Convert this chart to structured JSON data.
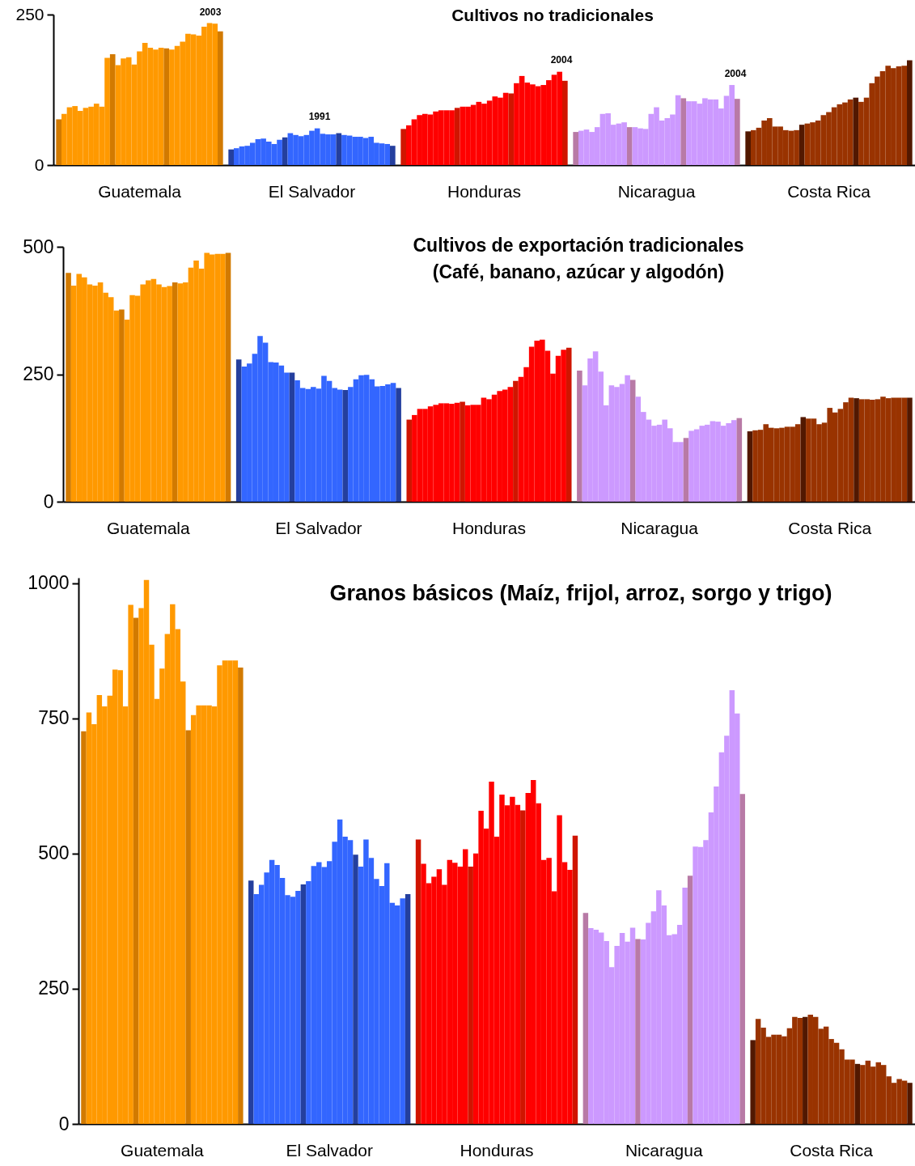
{
  "chart_data": [
    {
      "type": "bar",
      "title": "Cultivos no tradicionales",
      "categories": [
        null,
        null,
        null,
        null,
        null,
        null,
        null,
        null,
        null,
        null,
        null,
        null,
        null,
        null,
        null,
        "Guatemala",
        null,
        null,
        null,
        null,
        null,
        null,
        null,
        null,
        null,
        null,
        null,
        null,
        null,
        null,
        null,
        null,
        null,
        null,
        null,
        null,
        null,
        null,
        null,
        null,
        null,
        null,
        null,
        null,
        null,
        null,
        null,
        "El Salvador",
        null,
        null,
        null,
        null,
        null,
        null,
        null,
        null,
        null,
        null,
        null,
        null,
        null,
        null,
        null,
        null,
        null,
        null,
        null,
        null,
        null,
        null,
        null,
        null,
        null,
        null,
        null,
        null,
        null,
        null,
        null,
        "Honduras",
        null,
        null,
        null,
        null,
        null,
        null,
        null,
        null,
        null,
        null,
        null,
        null,
        null,
        null,
        null,
        null,
        null,
        null,
        null,
        null,
        null,
        null,
        null,
        null,
        null,
        null,
        null,
        null,
        null,
        null,
        null,
        "Nicaragua",
        null,
        null,
        null,
        null,
        null,
        null,
        null,
        null,
        null,
        null,
        null,
        null,
        null,
        null,
        null,
        null,
        null,
        null,
        null,
        null,
        null,
        null,
        null,
        null,
        null,
        null,
        null,
        null,
        null,
        null,
        null,
        "Costa Rica",
        null,
        null,
        null,
        null,
        null,
        null,
        null,
        null,
        null,
        null,
        null,
        null,
        null,
        null,
        null
      ],
      "values": [
        76,
        85,
        96,
        98,
        90,
        95,
        97,
        102,
        97,
        178,
        184,
        166,
        177,
        179,
        167,
        189,
        203,
        195,
        192,
        195,
        194,
        192,
        198,
        205,
        218,
        217,
        215,
        230,
        236,
        235,
        222,
        null,
        26,
        28,
        31,
        32,
        37,
        43,
        44,
        39,
        35,
        42,
        46,
        53,
        50,
        48,
        50,
        57,
        61,
        52,
        51,
        51,
        53,
        50,
        49,
        47,
        47,
        45,
        47,
        37,
        36,
        35,
        32,
        null,
        60,
        66,
        76,
        83,
        85,
        84,
        89,
        91,
        91,
        91,
        95,
        97,
        97,
        100,
        105,
        102,
        107,
        114,
        112,
        120,
        119,
        136,
        148,
        137,
        134,
        131,
        133,
        141,
        150,
        155,
        140,
        null,
        55,
        57,
        59,
        55,
        63,
        85,
        86,
        67,
        69,
        71,
        63,
        63,
        61,
        60,
        85,
        96,
        74,
        78,
        84,
        116,
        111,
        106,
        106,
        102,
        111,
        109,
        109,
        94,
        115,
        133,
        110,
        null,
        56,
        58,
        62,
        74,
        78,
        64,
        64,
        58,
        57,
        58,
        67,
        69,
        71,
        74,
        83,
        88,
        96,
        101,
        104,
        109,
        112,
        105,
        112,
        136,
        147,
        156,
        165,
        161,
        164,
        165,
        174
      ],
      "colors": [
        "#d27a00",
        "#ff9900",
        "#ff9900",
        "#ff9900",
        "#ff9900",
        "#ff9900",
        "#ff9900",
        "#ff9900",
        "#ff9900",
        "#ff9900",
        "#d27a00",
        "#ff9900",
        "#ff9900",
        "#ff9900",
        "#ff9900",
        "#ff9900",
        "#ff9900",
        "#ff9900",
        "#ff9900",
        "#ff9900",
        "#d27a00",
        "#ff9900",
        "#ff9900",
        "#ff9900",
        "#ff9900",
        "#ff9900",
        "#ff9900",
        "#ff9900",
        "#ff9900",
        "#ff9900",
        "#d27a00",
        null,
        "#243f9e",
        "#3366ff",
        "#3366ff",
        "#3366ff",
        "#3366ff",
        "#3366ff",
        "#3366ff",
        "#3366ff",
        "#3366ff",
        "#3366ff",
        "#243f9e",
        "#3366ff",
        "#3366ff",
        "#3366ff",
        "#3366ff",
        "#3366ff",
        "#3366ff",
        "#3366ff",
        "#3366ff",
        "#3366ff",
        "#243f9e",
        "#3366ff",
        "#3366ff",
        "#3366ff",
        "#3366ff",
        "#3366ff",
        "#3366ff",
        "#3366ff",
        "#3366ff",
        "#3366ff",
        "#243f9e",
        null,
        "#d01500",
        "#ff0000",
        "#ff0000",
        "#ff0000",
        "#ff0000",
        "#ff0000",
        "#ff0000",
        "#ff0000",
        "#ff0000",
        "#ff0000",
        "#d01500",
        "#ff0000",
        "#ff0000",
        "#ff0000",
        "#ff0000",
        "#ff0000",
        "#ff0000",
        "#ff0000",
        "#ff0000",
        "#ff0000",
        "#d01500",
        "#ff0000",
        "#ff0000",
        "#ff0000",
        "#ff0000",
        "#ff0000",
        "#ff0000",
        "#ff0000",
        "#ff0000",
        "#ff0000",
        "#d01500",
        null,
        "#b87aa6",
        "#cc99ff",
        "#cc99ff",
        "#cc99ff",
        "#cc99ff",
        "#cc99ff",
        "#cc99ff",
        "#cc99ff",
        "#cc99ff",
        "#cc99ff",
        "#b87aa6",
        "#cc99ff",
        "#cc99ff",
        "#cc99ff",
        "#cc99ff",
        "#cc99ff",
        "#cc99ff",
        "#cc99ff",
        "#cc99ff",
        "#cc99ff",
        "#b87aa6",
        "#cc99ff",
        "#cc99ff",
        "#cc99ff",
        "#cc99ff",
        "#cc99ff",
        "#cc99ff",
        "#cc99ff",
        "#cc99ff",
        "#cc99ff",
        "#b87aa6",
        null,
        "#521800",
        "#993300",
        "#993300",
        "#993300",
        "#993300",
        "#993300",
        "#993300",
        "#993300",
        "#993300",
        "#993300",
        "#521800",
        "#993300",
        "#993300",
        "#993300",
        "#993300",
        "#993300",
        "#993300",
        "#993300",
        "#993300",
        "#993300",
        "#521800",
        "#993300",
        "#993300",
        "#993300",
        "#993300",
        "#993300",
        "#993300",
        "#993300",
        "#993300",
        "#993300",
        "#521800"
      ],
      "ylim": [
        0,
        250
      ],
      "yticks": [
        0,
        250
      ],
      "annotations": [
        "2003",
        "1991",
        "2004",
        "2004"
      ]
    },
    {
      "type": "bar",
      "title": "Cultivos de exportación tradicionales",
      "subtitle": "(Café, banano, azúcar y algodón)",
      "categories": [
        null,
        null,
        null,
        null,
        null,
        null,
        null,
        null,
        null,
        null,
        null,
        null,
        null,
        null,
        null,
        "Guatemala",
        null,
        null,
        null,
        null,
        null,
        null,
        null,
        null,
        null,
        null,
        null,
        null,
        null,
        null,
        null,
        null,
        null,
        null,
        null,
        null,
        null,
        null,
        null,
        null,
        null,
        null,
        null,
        null,
        null,
        null,
        null,
        "El Salvador",
        null,
        null,
        null,
        null,
        null,
        null,
        null,
        null,
        null,
        null,
        null,
        null,
        null,
        null,
        null,
        null,
        null,
        null,
        null,
        null,
        null,
        null,
        null,
        null,
        null,
        null,
        null,
        null,
        null,
        null,
        null,
        "Honduras",
        null,
        null,
        null,
        null,
        null,
        null,
        null,
        null,
        null,
        null,
        null,
        null,
        null,
        null,
        null,
        null,
        null,
        null,
        null,
        null,
        null,
        null,
        null,
        null,
        null,
        null,
        null,
        null,
        null,
        null,
        null,
        "Nicaragua",
        null,
        null,
        null,
        null,
        null,
        null,
        null,
        null,
        null,
        null,
        null,
        null,
        null,
        null,
        null,
        null,
        null,
        null,
        null,
        null,
        null,
        null,
        null,
        null,
        null,
        null,
        null,
        null,
        null,
        null,
        null,
        "Costa Rica",
        null,
        null,
        null,
        null,
        null,
        null,
        null,
        null,
        null,
        null,
        null,
        null,
        null,
        null,
        null
      ],
      "values": [
        449,
        424,
        447,
        440,
        426,
        424,
        430,
        410,
        401,
        375,
        377,
        357,
        405,
        404,
        426,
        434,
        437,
        426,
        421,
        423,
        430,
        428,
        430,
        459,
        473,
        457,
        488,
        485,
        486,
        486,
        488,
        null,
        279,
        265,
        271,
        290,
        325,
        312,
        274,
        273,
        267,
        253,
        253,
        238,
        223,
        221,
        225,
        222,
        247,
        237,
        223,
        220,
        219,
        225,
        240,
        248,
        249,
        240,
        226,
        227,
        230,
        233,
        223,
        null,
        161,
        170,
        182,
        182,
        187,
        190,
        193,
        193,
        192,
        194,
        196,
        189,
        190,
        190,
        204,
        201,
        210,
        217,
        220,
        225,
        237,
        245,
        264,
        304,
        316,
        318,
        296,
        251,
        286,
        298,
        302,
        null,
        257,
        228,
        281,
        295,
        255,
        189,
        228,
        225,
        231,
        248,
        239,
        206,
        176,
        161,
        149,
        151,
        161,
        144,
        117,
        117,
        125,
        139,
        142,
        149,
        151,
        158,
        157,
        149,
        154,
        160,
        164,
        null,
        138,
        140,
        141,
        152,
        145,
        144,
        145,
        147,
        147,
        152,
        166,
        163,
        163,
        152,
        155,
        184,
        175,
        182,
        195,
        204,
        203,
        201,
        201,
        200,
        201,
        206,
        203,
        204,
        204,
        204,
        204
      ],
      "colors": [
        "#d27a00",
        "#ff9900",
        "#ff9900",
        "#ff9900",
        "#ff9900",
        "#ff9900",
        "#ff9900",
        "#ff9900",
        "#ff9900",
        "#ff9900",
        "#d27a00",
        "#ff9900",
        "#ff9900",
        "#ff9900",
        "#ff9900",
        "#ff9900",
        "#ff9900",
        "#ff9900",
        "#ff9900",
        "#ff9900",
        "#d27a00",
        "#ff9900",
        "#ff9900",
        "#ff9900",
        "#ff9900",
        "#ff9900",
        "#ff9900",
        "#ff9900",
        "#ff9900",
        "#ff9900",
        "#d27a00",
        null,
        "#243f9e",
        "#3366ff",
        "#3366ff",
        "#3366ff",
        "#3366ff",
        "#3366ff",
        "#3366ff",
        "#3366ff",
        "#3366ff",
        "#3366ff",
        "#243f9e",
        "#3366ff",
        "#3366ff",
        "#3366ff",
        "#3366ff",
        "#3366ff",
        "#3366ff",
        "#3366ff",
        "#3366ff",
        "#3366ff",
        "#243f9e",
        "#3366ff",
        "#3366ff",
        "#3366ff",
        "#3366ff",
        "#3366ff",
        "#3366ff",
        "#3366ff",
        "#3366ff",
        "#3366ff",
        "#243f9e",
        null,
        "#d01500",
        "#ff0000",
        "#ff0000",
        "#ff0000",
        "#ff0000",
        "#ff0000",
        "#ff0000",
        "#ff0000",
        "#ff0000",
        "#ff0000",
        "#d01500",
        "#ff0000",
        "#ff0000",
        "#ff0000",
        "#ff0000",
        "#ff0000",
        "#ff0000",
        "#ff0000",
        "#ff0000",
        "#ff0000",
        "#d01500",
        "#ff0000",
        "#ff0000",
        "#ff0000",
        "#ff0000",
        "#ff0000",
        "#ff0000",
        "#ff0000",
        "#ff0000",
        "#ff0000",
        "#d01500",
        null,
        "#b87aa6",
        "#cc99ff",
        "#cc99ff",
        "#cc99ff",
        "#cc99ff",
        "#cc99ff",
        "#cc99ff",
        "#cc99ff",
        "#cc99ff",
        "#cc99ff",
        "#b87aa6",
        "#cc99ff",
        "#cc99ff",
        "#cc99ff",
        "#cc99ff",
        "#cc99ff",
        "#cc99ff",
        "#cc99ff",
        "#cc99ff",
        "#cc99ff",
        "#b87aa6",
        "#cc99ff",
        "#cc99ff",
        "#cc99ff",
        "#cc99ff",
        "#cc99ff",
        "#cc99ff",
        "#cc99ff",
        "#cc99ff",
        "#cc99ff",
        "#b87aa6",
        null,
        "#521800",
        "#993300",
        "#993300",
        "#993300",
        "#993300",
        "#993300",
        "#993300",
        "#993300",
        "#993300",
        "#993300",
        "#521800",
        "#993300",
        "#993300",
        "#993300",
        "#993300",
        "#993300",
        "#993300",
        "#993300",
        "#993300",
        "#993300",
        "#521800",
        "#993300",
        "#993300",
        "#993300",
        "#993300",
        "#993300",
        "#993300",
        "#993300",
        "#993300",
        "#993300",
        "#521800"
      ],
      "ylim": [
        0,
        500
      ],
      "yticks": [
        0,
        250,
        500
      ]
    },
    {
      "type": "bar",
      "title": "Granos básicos (Maíz, frijol, arroz, sorgo y trigo)",
      "categories": [
        null,
        null,
        null,
        null,
        null,
        null,
        null,
        null,
        null,
        null,
        null,
        null,
        null,
        null,
        null,
        "Guatemala",
        null,
        null,
        null,
        null,
        null,
        null,
        null,
        null,
        null,
        null,
        null,
        null,
        null,
        null,
        null,
        null,
        null,
        null,
        null,
        null,
        null,
        null,
        null,
        null,
        null,
        null,
        null,
        null,
        null,
        null,
        null,
        "El Salvador",
        null,
        null,
        null,
        null,
        null,
        null,
        null,
        null,
        null,
        null,
        null,
        null,
        null,
        null,
        null,
        null,
        null,
        null,
        null,
        null,
        null,
        null,
        null,
        null,
        null,
        null,
        null,
        null,
        null,
        null,
        null,
        "Honduras",
        null,
        null,
        null,
        null,
        null,
        null,
        null,
        null,
        null,
        null,
        null,
        null,
        null,
        null,
        null,
        null,
        null,
        null,
        null,
        null,
        null,
        null,
        null,
        null,
        null,
        null,
        null,
        null,
        null,
        null,
        null,
        "Nicaragua",
        null,
        null,
        null,
        null,
        null,
        null,
        null,
        null,
        null,
        null,
        null,
        null,
        null,
        null,
        null,
        null,
        null,
        null,
        null,
        null,
        null,
        null,
        null,
        null,
        null,
        null,
        null,
        null,
        null,
        null,
        null,
        "Costa Rica",
        null,
        null,
        null,
        null,
        null,
        null,
        null,
        null,
        null,
        null,
        null,
        null,
        null,
        null,
        null
      ],
      "values": [
        726,
        761,
        739,
        793,
        772,
        792,
        840,
        839,
        772,
        960,
        936,
        954,
        1006,
        886,
        786,
        842,
        906,
        961,
        915,
        818,
        728,
        756,
        774,
        774,
        774,
        772,
        848,
        857,
        857,
        857,
        844,
        null,
        450,
        425,
        442,
        465,
        488,
        479,
        455,
        423,
        420,
        431,
        443,
        449,
        477,
        484,
        475,
        486,
        522,
        563,
        531,
        525,
        498,
        476,
        526,
        492,
        453,
        440,
        482,
        409,
        404,
        417,
        425,
        null,
        526,
        481,
        445,
        457,
        471,
        442,
        488,
        483,
        476,
        508,
        476,
        500,
        579,
        546,
        633,
        531,
        609,
        589,
        605,
        590,
        580,
        612,
        636,
        593,
        488,
        492,
        430,
        571,
        484,
        470,
        533,
        null,
        390,
        362,
        359,
        354,
        338,
        290,
        329,
        353,
        337,
        363,
        342,
        341,
        372,
        393,
        432,
        404,
        349,
        351,
        368,
        437,
        459,
        513,
        512,
        525,
        576,
        624,
        687,
        718,
        802,
        759,
        610,
        null,
        155,
        194,
        178,
        161,
        165,
        165,
        162,
        177,
        198,
        196,
        198,
        202,
        198,
        176,
        180,
        157,
        150,
        138,
        119,
        119,
        111,
        109,
        117,
        106,
        114,
        109,
        88,
        76,
        83,
        80,
        76
      ],
      "colors": [
        "#d27a00",
        "#ff9900",
        "#ff9900",
        "#ff9900",
        "#ff9900",
        "#ff9900",
        "#ff9900",
        "#ff9900",
        "#ff9900",
        "#ff9900",
        "#d27a00",
        "#ff9900",
        "#ff9900",
        "#ff9900",
        "#ff9900",
        "#ff9900",
        "#ff9900",
        "#ff9900",
        "#ff9900",
        "#ff9900",
        "#d27a00",
        "#ff9900",
        "#ff9900",
        "#ff9900",
        "#ff9900",
        "#ff9900",
        "#ff9900",
        "#ff9900",
        "#ff9900",
        "#ff9900",
        "#d27a00",
        null,
        "#243f9e",
        "#3366ff",
        "#3366ff",
        "#3366ff",
        "#3366ff",
        "#3366ff",
        "#3366ff",
        "#3366ff",
        "#3366ff",
        "#3366ff",
        "#243f9e",
        "#3366ff",
        "#3366ff",
        "#3366ff",
        "#3366ff",
        "#3366ff",
        "#3366ff",
        "#3366ff",
        "#3366ff",
        "#3366ff",
        "#243f9e",
        "#3366ff",
        "#3366ff",
        "#3366ff",
        "#3366ff",
        "#3366ff",
        "#3366ff",
        "#3366ff",
        "#3366ff",
        "#3366ff",
        "#243f9e",
        null,
        "#d01500",
        "#ff0000",
        "#ff0000",
        "#ff0000",
        "#ff0000",
        "#ff0000",
        "#ff0000",
        "#ff0000",
        "#ff0000",
        "#ff0000",
        "#d01500",
        "#ff0000",
        "#ff0000",
        "#ff0000",
        "#ff0000",
        "#ff0000",
        "#ff0000",
        "#ff0000",
        "#ff0000",
        "#ff0000",
        "#d01500",
        "#ff0000",
        "#ff0000",
        "#ff0000",
        "#ff0000",
        "#ff0000",
        "#ff0000",
        "#ff0000",
        "#ff0000",
        "#ff0000",
        "#d01500",
        null,
        "#b87aa6",
        "#cc99ff",
        "#cc99ff",
        "#cc99ff",
        "#cc99ff",
        "#cc99ff",
        "#cc99ff",
        "#cc99ff",
        "#cc99ff",
        "#cc99ff",
        "#b87aa6",
        "#cc99ff",
        "#cc99ff",
        "#cc99ff",
        "#cc99ff",
        "#cc99ff",
        "#cc99ff",
        "#cc99ff",
        "#cc99ff",
        "#cc99ff",
        "#b87aa6",
        "#cc99ff",
        "#cc99ff",
        "#cc99ff",
        "#cc99ff",
        "#cc99ff",
        "#cc99ff",
        "#cc99ff",
        "#cc99ff",
        "#cc99ff",
        "#b87aa6",
        null,
        "#521800",
        "#993300",
        "#993300",
        "#993300",
        "#993300",
        "#993300",
        "#993300",
        "#993300",
        "#993300",
        "#993300",
        "#521800",
        "#993300",
        "#993300",
        "#993300",
        "#993300",
        "#993300",
        "#993300",
        "#993300",
        "#993300",
        "#993300",
        "#521800",
        "#993300",
        "#993300",
        "#993300",
        "#993300",
        "#993300",
        "#993300",
        "#993300",
        "#993300",
        "#993300",
        "#521800"
      ],
      "ylim": [
        0,
        1010
      ],
      "yticks": [
        0,
        250,
        500,
        750,
        1000
      ]
    }
  ]
}
